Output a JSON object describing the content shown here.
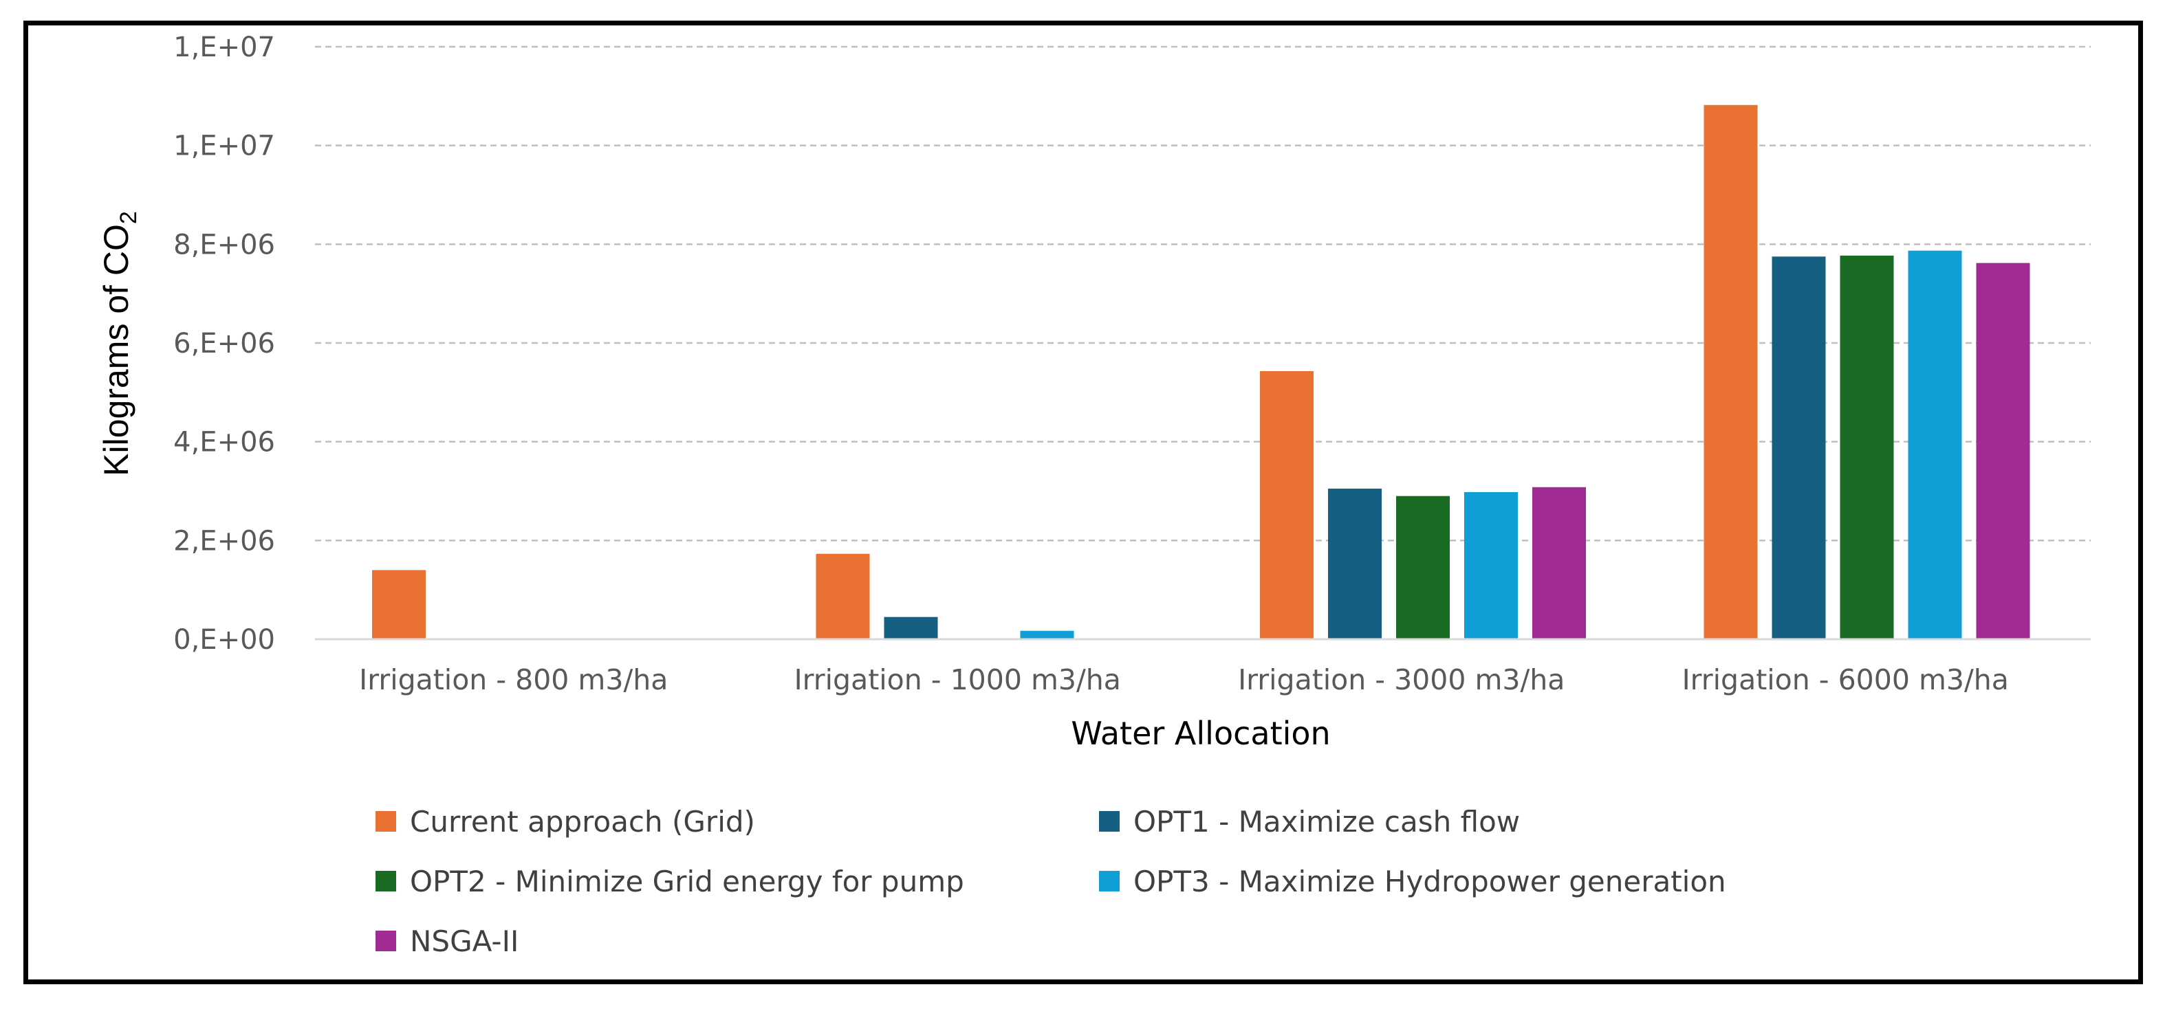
{
  "chart_data": {
    "type": "bar",
    "title": "",
    "xlabel": "Water Allocation",
    "ylabel": "Kilograms of CO",
    "ylabel_subscript": "2",
    "ylim": [
      0,
      12000000
    ],
    "yticks": [
      {
        "value": 0,
        "label": "0,E+00"
      },
      {
        "value": 2000000,
        "label": "2,E+06"
      },
      {
        "value": 4000000,
        "label": "4,E+06"
      },
      {
        "value": 6000000,
        "label": "6,E+06"
      },
      {
        "value": 8000000,
        "label": "8,E+06"
      },
      {
        "value": 10000000,
        "label": "1,E+07"
      },
      {
        "value": 12000000,
        "label": "1,E+07"
      }
    ],
    "grid": true,
    "legend_position": "bottom",
    "categories": [
      "Irrigation - 800 m3/ha",
      "Irrigation - 1000 m3/ha",
      "Irrigation - 3000 m3/ha",
      "Irrigation - 6000 m3/ha"
    ],
    "series": [
      {
        "name": "Current approach (Grid)",
        "color": "#e97132",
        "values": [
          1400000,
          1730000,
          5430000,
          10820000
        ]
      },
      {
        "name": "OPT1 - Maximize cash flow",
        "color": "#156082",
        "values": [
          0,
          450000,
          3050000,
          7750000
        ]
      },
      {
        "name": "OPT2 - Minimize Grid energy for pump",
        "color": "#196b24",
        "values": [
          0,
          0,
          2900000,
          7770000
        ]
      },
      {
        "name": "OPT3 - Maximize Hydropower generation",
        "color": "#0f9ed5",
        "values": [
          0,
          170000,
          2980000,
          7870000
        ]
      },
      {
        "name": "NSGA-II",
        "color": "#a02b93",
        "values": [
          0,
          0,
          3080000,
          7620000
        ]
      }
    ]
  }
}
